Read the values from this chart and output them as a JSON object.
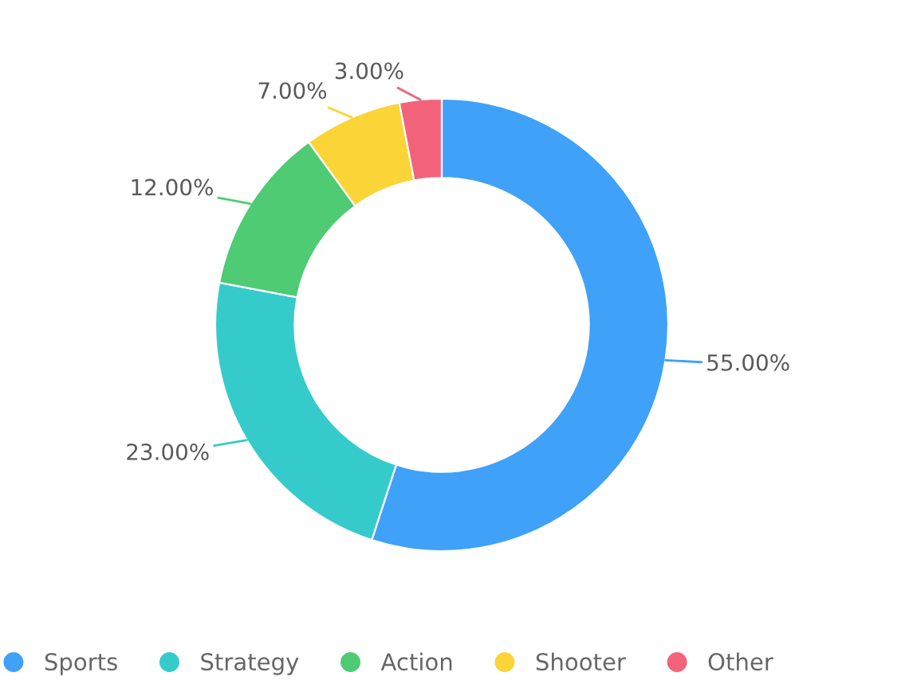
{
  "chart_data": {
    "type": "donut",
    "categories": [
      "Sports",
      "Strategy",
      "Action",
      "Shooter",
      "Other"
    ],
    "values": [
      55,
      23,
      12,
      7,
      3
    ],
    "colors": [
      "#3fa1f8",
      "#36cbcb",
      "#4ecb73",
      "#fbd437",
      "#f2637b"
    ],
    "value_labels": [
      "55.00%",
      "23.00%",
      "12.00%",
      "7.00%",
      "3.00%"
    ],
    "legend": "bottom"
  }
}
